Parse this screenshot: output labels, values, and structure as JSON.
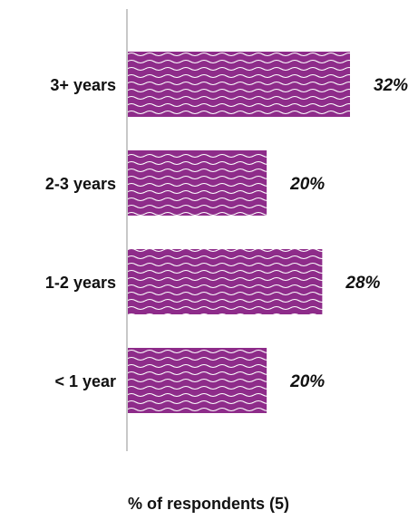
{
  "chart_data": {
    "type": "bar",
    "orientation": "horizontal",
    "categories": [
      "3+ years",
      "2-3 years",
      "1-2 years",
      "< 1 year"
    ],
    "values": [
      32,
      20,
      28,
      20
    ],
    "value_labels": [
      "32%",
      "20%",
      "28%",
      "20%"
    ],
    "xlabel": "% of respondents (5)",
    "ylabel": "",
    "xlim": [
      0,
      32
    ],
    "grid": false,
    "legend": "none",
    "bar_color": "#8e2c8a",
    "bar_pattern": "white wavy lines"
  }
}
